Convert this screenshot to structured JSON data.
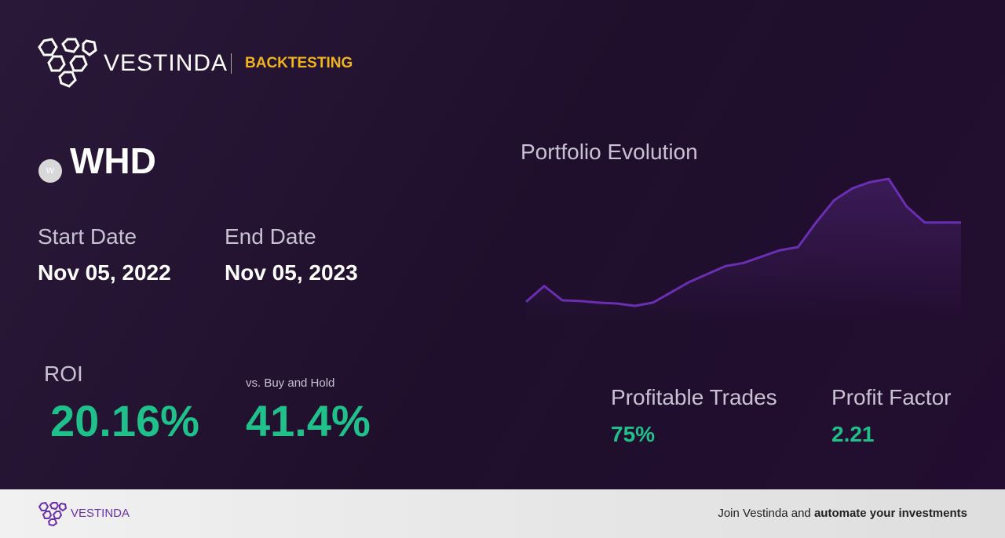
{
  "header": {
    "brand": "VESTINDA",
    "section": "BACKTESTING"
  },
  "asset": {
    "icon": "W",
    "ticker": "WHD"
  },
  "dates": {
    "start_label": "Start Date",
    "start_value": "Nov 05, 2022",
    "end_label": "End Date",
    "end_value": "Nov 05, 2023"
  },
  "metrics": {
    "roi_label": "ROI",
    "roi_value": "20.16%",
    "bh_label": "vs. Buy and Hold",
    "bh_value": "41.4%",
    "trades_label": "Profitable Trades",
    "trades_value": "75%",
    "factor_label": "Profit Factor",
    "factor_value": "2.21"
  },
  "chart_data": {
    "type": "line",
    "title": "Portfolio Evolution",
    "color": "#6a2fb0",
    "values": [
      15,
      35,
      17,
      16,
      14,
      13,
      10,
      14,
      27,
      40,
      50,
      60,
      64,
      72,
      80,
      84,
      115,
      143,
      158,
      166,
      170,
      135,
      115,
      115,
      115
    ]
  },
  "footer": {
    "brand": "VESTINDA",
    "text": "Join Vestinda and",
    "text_bold": "automate your investments"
  }
}
